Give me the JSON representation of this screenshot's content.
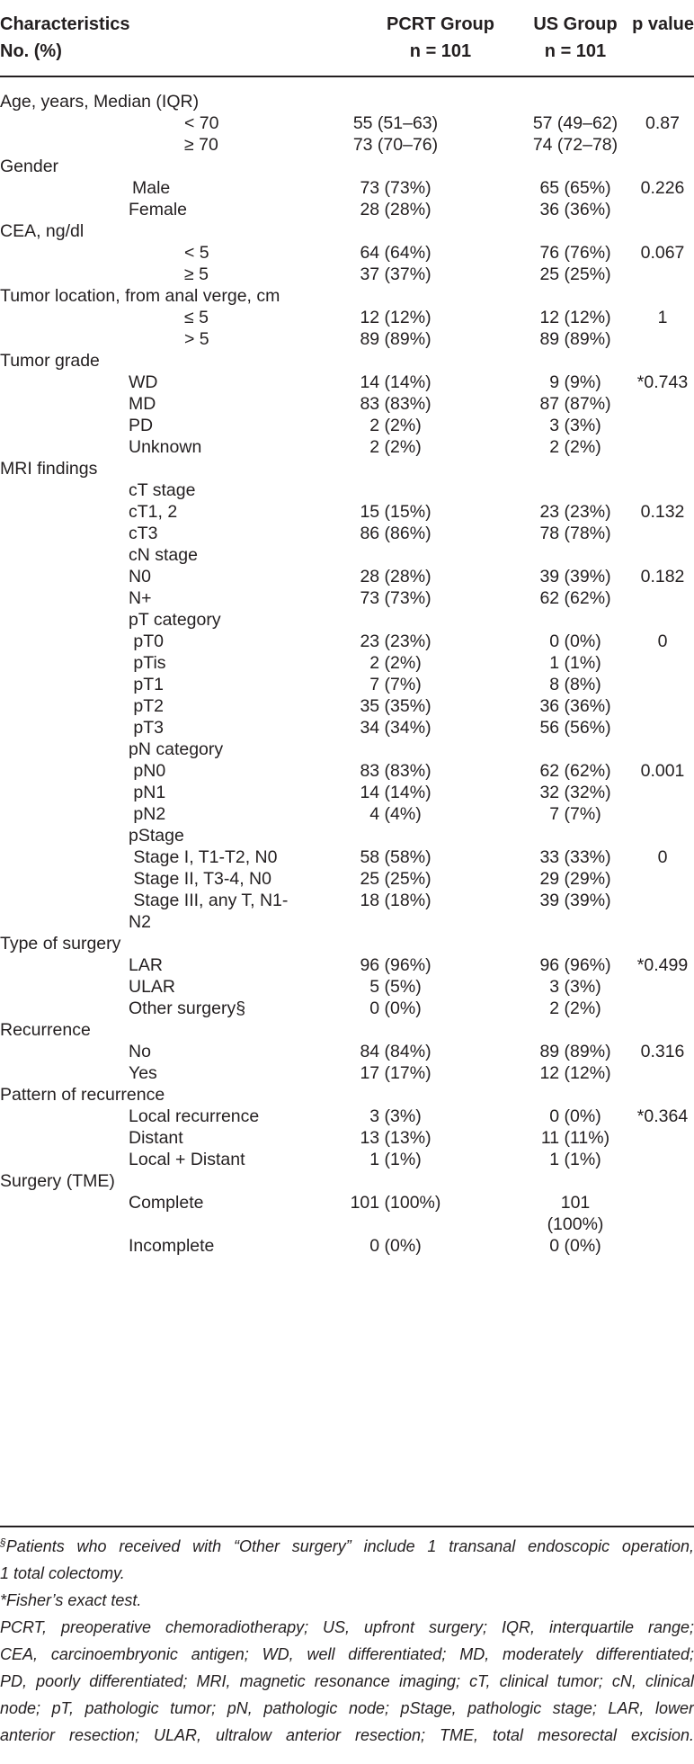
{
  "header": {
    "col1_line1": "Characteristics",
    "col1_line2": "No. (%)",
    "col2_line1": "PCRT Group",
    "col2_line2": "n = 101",
    "col3_line1": "US Group",
    "col3_line2": "n = 101",
    "col4_line1": "p value"
  },
  "rows": [
    {
      "cat": "Age, years, Median (IQR)",
      "sub": "",
      "pcrt": "",
      "us": "",
      "p": ""
    },
    {
      "cat": "",
      "sub": "< 70",
      "pcrt": "55 (51–63)",
      "us": "57 (49–62)",
      "p": "0.87"
    },
    {
      "cat": "",
      "sub": "≥ 70",
      "pcrt": "73 (70–76)",
      "us": "74 (72–78)",
      "p": ""
    },
    {
      "cat": "Gender",
      "sub": "",
      "pcrt": "",
      "us": "",
      "p": ""
    },
    {
      "cat": "",
      "sub": "Male",
      "pcrt": "73 (73%)",
      "us": "65 (65%)",
      "p": "0.226"
    },
    {
      "cat": "",
      "sub": "Female",
      "pcrt": "28 (28%)",
      "us": "36 (36%)",
      "p": ""
    },
    {
      "cat": "CEA, ng/dl",
      "sub": "",
      "pcrt": "",
      "us": "",
      "p": ""
    },
    {
      "cat": "",
      "sub": "< 5",
      "pcrt": "64 (64%)",
      "us": "76 (76%)",
      "p": "0.067"
    },
    {
      "cat": "",
      "sub": "≥ 5",
      "pcrt": "37 (37%)",
      "us": "25 (25%)",
      "p": ""
    },
    {
      "cat": "Tumor location, from anal verge, cm",
      "sub": "",
      "pcrt": "",
      "us": "",
      "p": ""
    },
    {
      "cat": "",
      "sub": "≤ 5",
      "pcrt": "12 (12%)",
      "us": "12 (12%)",
      "p": "1"
    },
    {
      "cat": "",
      "sub": "> 5",
      "pcrt": "89 (89%)",
      "us": "89 (89%)",
      "p": ""
    },
    {
      "cat": "Tumor grade",
      "sub": "",
      "pcrt": "",
      "us": "",
      "p": ""
    },
    {
      "cat": "",
      "sub": "WD",
      "pcrt": "14 (14%)",
      "us": "9 (9%)",
      "p": "*0.743"
    },
    {
      "cat": "",
      "sub": "MD",
      "pcrt": "83 (83%)",
      "us": "87 (87%)",
      "p": ""
    },
    {
      "cat": "",
      "sub": "PD",
      "pcrt": "2 (2%)",
      "us": "3 (3%)",
      "p": ""
    },
    {
      "cat": "",
      "sub": "Unknown",
      "pcrt": "2 (2%)",
      "us": "2 (2%)",
      "p": ""
    },
    {
      "cat": "MRI findings",
      "sub": "",
      "pcrt": "",
      "us": "",
      "p": ""
    },
    {
      "cat": "",
      "sub": "cT stage",
      "pcrt": "",
      "us": "",
      "p": ""
    },
    {
      "cat": "",
      "sub": "cT1, 2",
      "pcrt": "15 (15%)",
      "us": "23 (23%)",
      "p": "0.132"
    },
    {
      "cat": "",
      "sub": "cT3",
      "pcrt": "86 (86%)",
      "us": "78 (78%)",
      "p": ""
    },
    {
      "cat": "",
      "sub": "cN stage",
      "pcrt": "",
      "us": "",
      "p": ""
    },
    {
      "cat": "",
      "sub": "N0",
      "pcrt": "28 (28%)",
      "us": "39 (39%)",
      "p": "0.182"
    },
    {
      "cat": "",
      "sub": "N+",
      "pcrt": "73 (73%)",
      "us": "62 (62%)",
      "p": ""
    },
    {
      "cat": "",
      "sub": "pT category",
      "pcrt": "",
      "us": "",
      "p": ""
    },
    {
      "cat": "",
      "sub": " pT0",
      "pcrt": "23 (23%)",
      "us": "0 (0%)",
      "p": "0"
    },
    {
      "cat": "",
      "sub": " pTis",
      "pcrt": "2 (2%)",
      "us": "1 (1%)",
      "p": ""
    },
    {
      "cat": "",
      "sub": " pT1",
      "pcrt": "7 (7%)",
      "us": "8 (8%)",
      "p": ""
    },
    {
      "cat": "",
      "sub": " pT2",
      "pcrt": "35 (35%)",
      "us": "36 (36%)",
      "p": ""
    },
    {
      "cat": "",
      "sub": " pT3",
      "pcrt": "34 (34%)",
      "us": "56 (56%)",
      "p": ""
    },
    {
      "cat": "",
      "sub": "pN category",
      "pcrt": "",
      "us": "",
      "p": ""
    },
    {
      "cat": "",
      "sub": " pN0",
      "pcrt": "83 (83%)",
      "us": "62 (62%)",
      "p": "0.001"
    },
    {
      "cat": "",
      "sub": " pN1",
      "pcrt": "14 (14%)",
      "us": "32 (32%)",
      "p": ""
    },
    {
      "cat": "",
      "sub": " pN2",
      "pcrt": "4 (4%)",
      "us": "7 (7%)",
      "p": ""
    },
    {
      "cat": "",
      "sub": "pStage",
      "pcrt": "",
      "us": "",
      "p": ""
    },
    {
      "cat": "",
      "sub": " Stage I, T1-T2, N0",
      "pcrt": "58 (58%)",
      "us": "33 (33%)",
      "p": "0"
    },
    {
      "cat": "",
      "sub": " Stage II, T3-4, N0",
      "pcrt": "25 (25%)",
      "us": "29 (29%)",
      "p": ""
    },
    {
      "cat": "",
      "sub": " Stage III, any T, N1-",
      "pcrt": "18 (18%)",
      "us": "39 (39%)",
      "p": ""
    },
    {
      "cat": "",
      "sub": "N2",
      "pcrt": "",
      "us": "",
      "p": ""
    },
    {
      "cat": "Type of surgery",
      "sub": "",
      "pcrt": "",
      "us": "",
      "p": ""
    },
    {
      "cat": "",
      "sub": "LAR",
      "pcrt": "96 (96%)",
      "us": "96 (96%)",
      "p": "*0.499"
    },
    {
      "cat": "",
      "sub": "ULAR",
      "pcrt": "5 (5%)",
      "us": "3 (3%)",
      "p": ""
    },
    {
      "cat": "",
      "sub": "Other surgery§",
      "pcrt": "0 (0%)",
      "us": "2 (2%)",
      "p": ""
    },
    {
      "cat": "Recurrence",
      "sub": "",
      "pcrt": "",
      "us": "",
      "p": ""
    },
    {
      "cat": "",
      "sub": "No",
      "pcrt": "84 (84%)",
      "us": "89 (89%)",
      "p": "0.316"
    },
    {
      "cat": "",
      "sub": "Yes",
      "pcrt": "17 (17%)",
      "us": "12 (12%)",
      "p": ""
    },
    {
      "cat": "Pattern of recurrence",
      "sub": "",
      "pcrt": "",
      "us": "",
      "p": ""
    },
    {
      "cat": "",
      "sub": "Local recurrence",
      "pcrt": "3 (3%)",
      "us": "0 (0%)",
      "p": "*0.364"
    },
    {
      "cat": "",
      "sub": "Distant",
      "pcrt": "13 (13%)",
      "us": "11 (11%)",
      "p": ""
    },
    {
      "cat": "",
      "sub": "Local + Distant",
      "pcrt": "1 (1%)",
      "us": "1 (1%)",
      "p": ""
    },
    {
      "cat": "Surgery (TME)",
      "sub": "",
      "pcrt": "",
      "us": "",
      "p": ""
    },
    {
      "cat": "",
      "sub": "Complete",
      "pcrt": "101 (100%)",
      "us": "101",
      "p": ""
    },
    {
      "cat": "",
      "sub": "",
      "pcrt": "",
      "us": "(100%)",
      "p": ""
    },
    {
      "cat": "",
      "sub": "Incomplete",
      "pcrt": "0 (0%)",
      "us": "0 (0%)",
      "p": ""
    }
  ],
  "footnotes": {
    "fn1_mark": "§",
    "fn1_line1": "Patients who received with “Other surgery” include 1 transanal endoscopic operation,",
    "fn1_line2": "1 total colectomy.",
    "fn2": "*Fisher’s exact test.",
    "abbr_line1": "PCRT, preoperative chemoradiotherapy; US, upfront surgery; IQR, interquartile range;",
    "abbr_line2": "CEA, carcinoembryonic antigen; WD, well differentiated; MD, moderately differentiated;",
    "abbr_line3": "PD, poorly differentiated; MRI, magnetic resonance imaging; cT, clinical tumor; cN, clinical",
    "abbr_line4": "node; pT, pathologic tumor; pN, pathologic node; pStage, pathologic stage; LAR, lower",
    "abbr_line5": "anterior resection; ULAR, ultralow anterior resection; TME, total mesorectal excision."
  }
}
